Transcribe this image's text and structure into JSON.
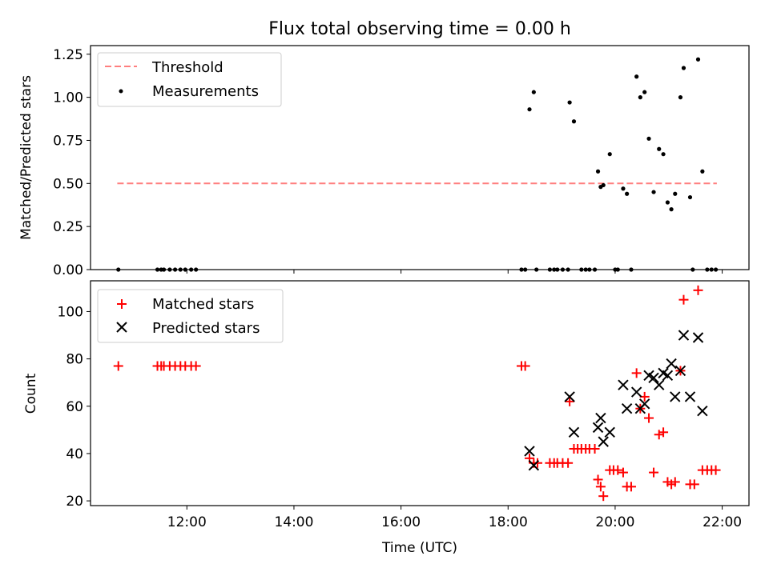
{
  "chart_data": [
    {
      "type": "scatter",
      "title": "Flux total observing time = 0.00 h",
      "xlabel": "",
      "ylabel": "Matched/Predicted stars",
      "xlim": [
        10.2,
        22.5
      ],
      "ylim": [
        0,
        1.3
      ],
      "yticks": [
        0.0,
        0.25,
        0.5,
        0.75,
        1.0,
        1.25
      ],
      "ytick_labels": [
        "0.00",
        "0.25",
        "0.50",
        "0.75",
        "1.00",
        "1.25"
      ],
      "legend_position": "upper-left",
      "grid": false,
      "series": [
        {
          "name": "Threshold",
          "style": "dashed-line",
          "color": "#ff7f7f",
          "x": [
            10.7,
            21.9
          ],
          "y": [
            0.5,
            0.5
          ]
        },
        {
          "name": "Measurements",
          "style": "dot",
          "color": "#000000",
          "x": [
            10.72,
            11.45,
            11.52,
            11.57,
            11.68,
            11.78,
            11.88,
            11.97,
            12.08,
            12.17,
            18.25,
            18.32,
            18.53,
            18.78,
            18.86,
            18.92,
            19.02,
            19.12,
            19.37,
            19.45,
            19.52,
            19.62,
            18.4,
            18.48,
            19.15,
            19.23,
            19.68,
            19.73,
            19.78,
            19.9,
            20.15,
            20.22,
            20.4,
            20.47,
            20.55,
            20.63,
            20.72,
            20.82,
            20.9,
            20.98,
            21.05,
            21.12,
            21.22,
            21.28,
            21.4,
            21.55,
            21.63,
            20.0,
            20.05,
            20.3,
            21.45,
            21.72,
            21.8,
            21.88
          ],
          "y": [
            0,
            0,
            0,
            0,
            0,
            0,
            0,
            0,
            0,
            0,
            0,
            0,
            0,
            0,
            0,
            0,
            0,
            0,
            0,
            0,
            0,
            0,
            0.93,
            1.03,
            0.97,
            0.86,
            0.57,
            0.48,
            0.49,
            0.67,
            0.47,
            0.44,
            1.12,
            1.0,
            1.03,
            0.76,
            0.45,
            0.7,
            0.67,
            0.39,
            0.35,
            0.44,
            1.0,
            1.17,
            0.42,
            1.22,
            0.57,
            0,
            0,
            0,
            0,
            0,
            0,
            0
          ]
        }
      ]
    },
    {
      "type": "scatter",
      "title": "",
      "xlabel": "Time (UTC)",
      "ylabel": "Count",
      "xlim": [
        10.2,
        22.5
      ],
      "ylim": [
        18,
        113
      ],
      "yticks": [
        20,
        40,
        60,
        80,
        100
      ],
      "ytick_labels": [
        "20",
        "40",
        "60",
        "80",
        "100"
      ],
      "xticks": [
        12,
        14,
        16,
        18,
        20,
        22
      ],
      "xtick_labels": [
        "12:00",
        "14:00",
        "16:00",
        "18:00",
        "20:00",
        "22:00"
      ],
      "legend_position": "upper-left",
      "grid": false,
      "series": [
        {
          "name": "Matched stars",
          "marker": "plus",
          "color": "#ff0000",
          "x": [
            10.72,
            11.45,
            11.52,
            11.57,
            11.68,
            11.78,
            11.88,
            11.97,
            12.08,
            12.17,
            18.25,
            18.32,
            18.4,
            18.48,
            18.55,
            18.78,
            18.86,
            18.92,
            19.02,
            19.12,
            19.15,
            19.23,
            19.3,
            19.37,
            19.45,
            19.52,
            19.62,
            19.68,
            19.73,
            19.78,
            19.9,
            19.97,
            20.05,
            20.15,
            20.22,
            20.3,
            20.4,
            20.47,
            20.55,
            20.63,
            20.72,
            20.82,
            20.9,
            20.98,
            21.05,
            21.12,
            21.22,
            21.28,
            21.4,
            21.48,
            21.55,
            21.63,
            21.72,
            21.8,
            21.88
          ],
          "y": [
            77,
            77,
            77,
            77,
            77,
            77,
            77,
            77,
            77,
            77,
            77,
            77,
            38,
            36,
            36,
            36,
            36,
            36,
            36,
            36,
            62,
            42,
            42,
            42,
            42,
            42,
            42,
            29,
            26,
            22,
            33,
            33,
            33,
            32,
            26,
            26,
            74,
            59,
            64,
            55,
            32,
            48,
            49,
            28,
            27,
            28,
            75,
            105,
            27,
            27,
            109,
            33,
            33,
            33,
            33
          ]
        },
        {
          "name": "Predicted stars",
          "marker": "x",
          "color": "#000000",
          "x": [
            18.4,
            18.48,
            19.15,
            19.23,
            19.68,
            19.73,
            19.78,
            19.9,
            20.15,
            20.22,
            20.4,
            20.47,
            20.55,
            20.63,
            20.72,
            20.82,
            20.9,
            20.98,
            21.05,
            21.12,
            21.22,
            21.28,
            21.4,
            21.55,
            21.63
          ],
          "y": [
            41,
            35,
            64,
            49,
            51,
            55,
            45,
            49,
            69,
            59,
            66,
            59,
            61,
            73,
            72,
            69,
            74,
            73,
            78,
            64,
            75,
            90,
            64,
            89,
            58
          ]
        }
      ]
    }
  ]
}
